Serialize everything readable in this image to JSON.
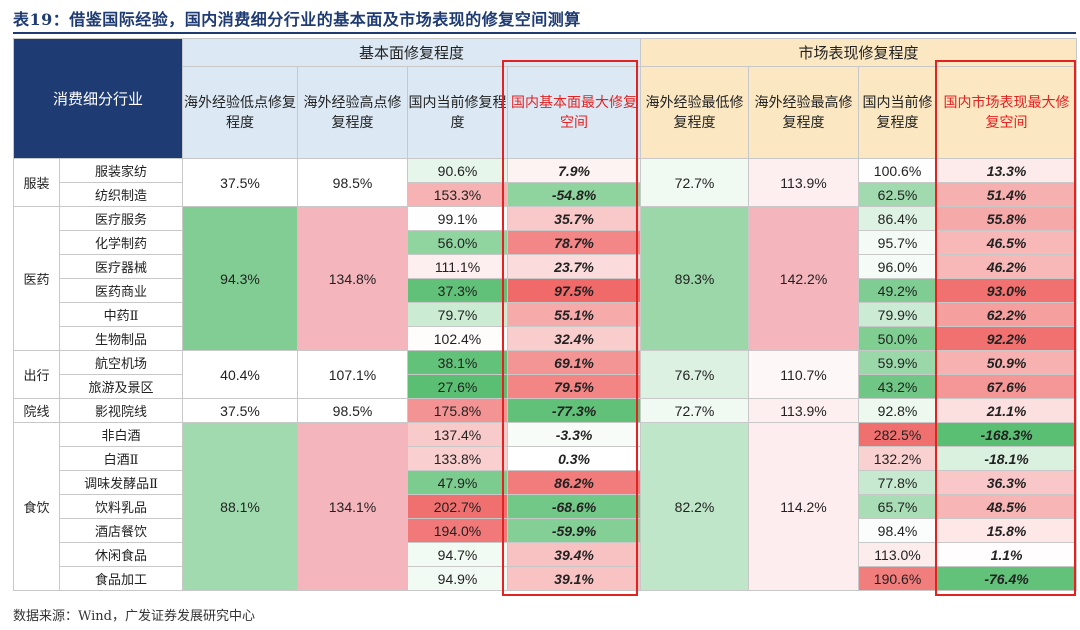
{
  "title": "表19：借鉴国际经验，国内消费细分行业的基本面及市场表现的修复空间测算",
  "source": "数据来源：Wind，广发证券发展研究中心",
  "header": {
    "industry": "消费细分行业",
    "fundamental_group": "基本面修复程度",
    "market_group": "市场表现修复程度",
    "f_low": "海外经验低点修复程度",
    "f_high": "海外经验高点修复程度",
    "f_cur": "国内当前修复程度",
    "f_gap": "国内基本面最大修复空间",
    "m_low": "海外经验最低修复程度",
    "m_high": "海外经验最高修复程度",
    "m_cur": "国内当前修复程度",
    "m_gap": "国内市场表现最大修复空间"
  },
  "colors": {
    "navy": "#1f3b73",
    "red_box": "#e32222",
    "green_strong": "#5bbf73",
    "red_strong": "#f06a6a"
  },
  "groups": [
    {
      "name": "服装",
      "f_low": "37.5%",
      "f_high": "98.5%",
      "m_low": "72.7%",
      "m_high": "113.9%",
      "rows": [
        {
          "sub": "服装家纺",
          "f_cur": "90.6%",
          "f_gap": "7.9%",
          "m_cur": "100.6%",
          "m_gap": "13.3%"
        },
        {
          "sub": "纺织制造",
          "f_cur": "153.3%",
          "f_gap": "-54.8%",
          "m_cur": "62.5%",
          "m_gap": "51.4%"
        }
      ]
    },
    {
      "name": "医药",
      "f_low": "94.3%",
      "f_high": "134.8%",
      "m_low": "89.3%",
      "m_high": "142.2%",
      "rows": [
        {
          "sub": "医疗服务",
          "f_cur": "99.1%",
          "f_gap": "35.7%",
          "m_cur": "86.4%",
          "m_gap": "55.8%"
        },
        {
          "sub": "化学制药",
          "f_cur": "56.0%",
          "f_gap": "78.7%",
          "m_cur": "95.7%",
          "m_gap": "46.5%"
        },
        {
          "sub": "医疗器械",
          "f_cur": "111.1%",
          "f_gap": "23.7%",
          "m_cur": "96.0%",
          "m_gap": "46.2%"
        },
        {
          "sub": "医药商业",
          "f_cur": "37.3%",
          "f_gap": "97.5%",
          "m_cur": "49.2%",
          "m_gap": "93.0%"
        },
        {
          "sub": "中药Ⅱ",
          "f_cur": "79.7%",
          "f_gap": "55.1%",
          "m_cur": "79.9%",
          "m_gap": "62.2%"
        },
        {
          "sub": "生物制品",
          "f_cur": "102.4%",
          "f_gap": "32.4%",
          "m_cur": "50.0%",
          "m_gap": "92.2%"
        }
      ]
    },
    {
      "name": "出行",
      "f_low": "40.4%",
      "f_high": "107.1%",
      "m_low": "76.7%",
      "m_high": "110.7%",
      "rows": [
        {
          "sub": "航空机场",
          "f_cur": "38.1%",
          "f_gap": "69.1%",
          "m_cur": "59.9%",
          "m_gap": "50.9%"
        },
        {
          "sub": "旅游及景区",
          "f_cur": "27.6%",
          "f_gap": "79.5%",
          "m_cur": "43.2%",
          "m_gap": "67.6%"
        }
      ]
    },
    {
      "name": "院线",
      "f_low": "37.5%",
      "f_high": "98.5%",
      "m_low": "72.7%",
      "m_high": "113.9%",
      "rows": [
        {
          "sub": "影视院线",
          "f_cur": "175.8%",
          "f_gap": "-77.3%",
          "m_cur": "92.8%",
          "m_gap": "21.1%"
        }
      ]
    },
    {
      "name": "食饮",
      "f_low": "88.1%",
      "f_high": "134.1%",
      "m_low": "82.2%",
      "m_high": "114.2%",
      "rows": [
        {
          "sub": "非白酒",
          "f_cur": "137.4%",
          "f_gap": "-3.3%",
          "m_cur": "282.5%",
          "m_gap": "-168.3%"
        },
        {
          "sub": "白酒Ⅱ",
          "f_cur": "133.8%",
          "f_gap": "0.3%",
          "m_cur": "132.2%",
          "m_gap": "-18.1%"
        },
        {
          "sub": "调味发酵品Ⅱ",
          "f_cur": "47.9%",
          "f_gap": "86.2%",
          "m_cur": "77.8%",
          "m_gap": "36.3%"
        },
        {
          "sub": "饮料乳品",
          "f_cur": "202.7%",
          "f_gap": "-68.6%",
          "m_cur": "65.7%",
          "m_gap": "48.5%"
        },
        {
          "sub": "酒店餐饮",
          "f_cur": "194.0%",
          "f_gap": "-59.9%",
          "m_cur": "98.4%",
          "m_gap": "15.8%"
        },
        {
          "sub": "休闲食品",
          "f_cur": "94.7%",
          "f_gap": "39.4%",
          "m_cur": "113.0%",
          "m_gap": "1.1%"
        },
        {
          "sub": "食品加工",
          "f_cur": "94.9%",
          "f_gap": "39.1%",
          "m_cur": "190.6%",
          "m_gap": "-76.4%"
        }
      ]
    }
  ]
}
